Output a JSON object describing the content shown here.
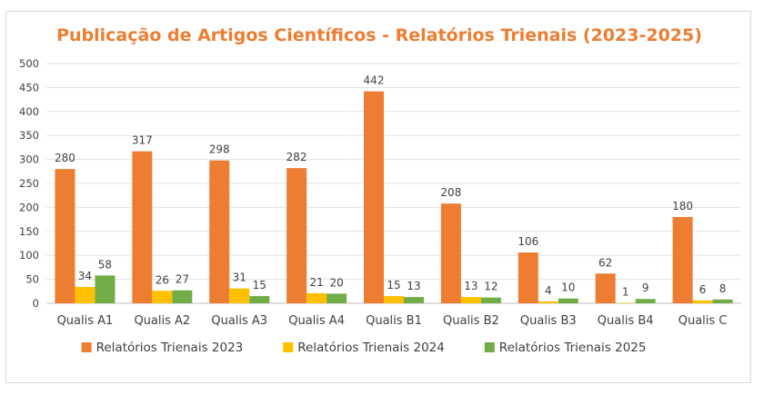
{
  "chart_data": {
    "type": "bar",
    "title": "Publicação de Artigos Científicos - Relatórios Trienais (2023-2025)",
    "xlabel": "",
    "ylabel": "",
    "ylim": [
      0,
      500
    ],
    "yticks": [
      0,
      50,
      100,
      150,
      200,
      250,
      300,
      350,
      400,
      450,
      500
    ],
    "grid": true,
    "legend_position": "bottom",
    "categories": [
      "Qualis A1",
      "Qualis A2",
      "Qualis A3",
      "Qualis A4",
      "Qualis B1",
      "Qualis B2",
      "Qualis B3",
      "Qualis B4",
      "Qualis C"
    ],
    "series": [
      {
        "name": "Relatórios Trienais 2023",
        "color": "#ED7D31",
        "values": [
          280,
          317,
          298,
          282,
          442,
          208,
          106,
          62,
          180
        ]
      },
      {
        "name": "Relatórios Trienais 2024",
        "color": "#FFC000",
        "values": [
          34,
          26,
          31,
          21,
          15,
          13,
          4,
          1,
          6
        ]
      },
      {
        "name": "Relatórios Trienais 2025",
        "color": "#70AD47",
        "values": [
          58,
          27,
          15,
          20,
          13,
          12,
          10,
          9,
          8
        ]
      }
    ],
    "title_color": "#ED7D31"
  }
}
